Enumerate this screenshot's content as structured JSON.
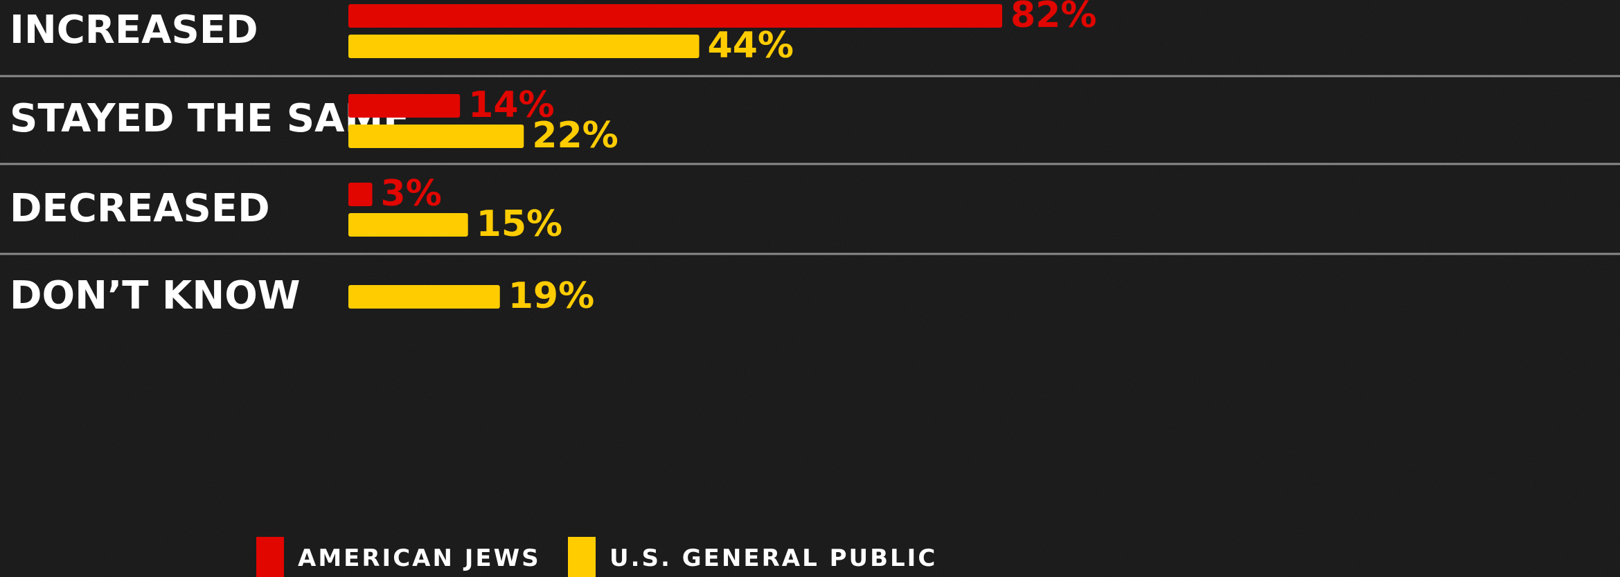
{
  "chart_data": {
    "type": "bar",
    "orientation": "horizontal",
    "categories": [
      "INCREASED",
      "STAYED THE SAME",
      "DECREASED",
      "DON’T KNOW"
    ],
    "series": [
      {
        "name": "AMERICAN JEWS",
        "color": "#E10600",
        "values": [
          82,
          14,
          3,
          null
        ]
      },
      {
        "name": "U.S. GENERAL PUBLIC",
        "color": "#FFCC00",
        "values": [
          44,
          22,
          15,
          19
        ]
      }
    ],
    "value_suffix": "%",
    "xlim": [
      0,
      82
    ],
    "grid": false,
    "legend_position": "bottom"
  }
}
